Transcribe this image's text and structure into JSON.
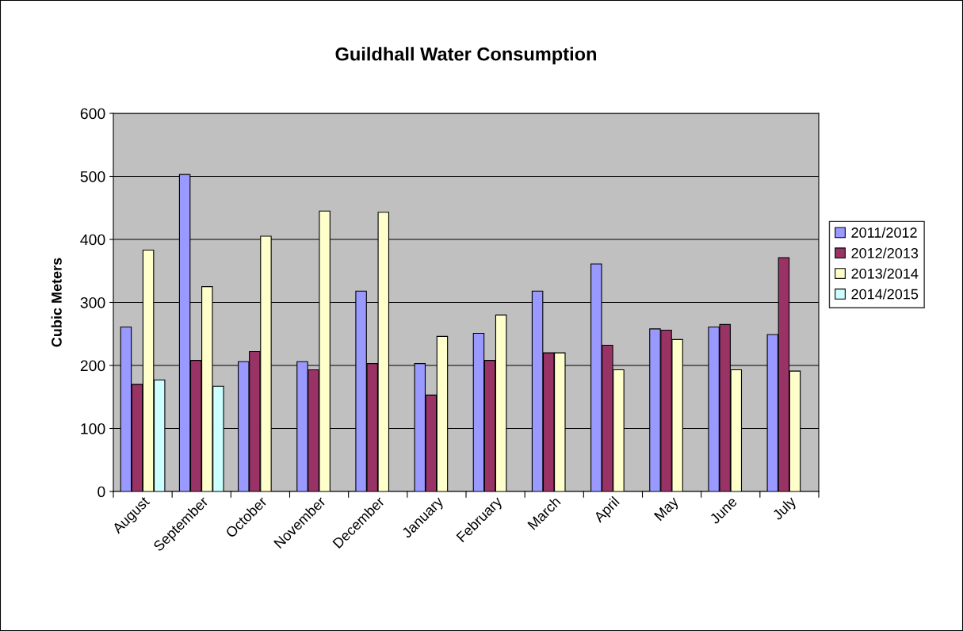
{
  "chart_data": {
    "type": "bar",
    "title": "Guildhall Water Consumption",
    "ylabel": "Cubic Meters",
    "categories": [
      "August",
      "September",
      "October",
      "November",
      "December",
      "January",
      "February",
      "March",
      "April",
      "May",
      "June",
      "July"
    ],
    "series": [
      {
        "name": "2011/2012",
        "color": "#9999ff",
        "values": [
          261,
          503,
          206,
          206,
          318,
          203,
          251,
          318,
          361,
          258,
          261,
          249
        ]
      },
      {
        "name": "2012/2013",
        "color": "#993366",
        "values": [
          170,
          208,
          222,
          193,
          203,
          153,
          208,
          220,
          232,
          256,
          265,
          371
        ]
      },
      {
        "name": "2013/2014",
        "color": "#ffffcc",
        "values": [
          383,
          325,
          405,
          445,
          443,
          246,
          280,
          220,
          193,
          241,
          193,
          191
        ]
      },
      {
        "name": "2014/2015",
        "color": "#ccffff",
        "values": [
          177,
          167,
          null,
          null,
          null,
          null,
          null,
          null,
          null,
          null,
          null,
          null
        ]
      }
    ],
    "ylim": [
      0,
      600
    ],
    "yticks": [
      0,
      100,
      200,
      300,
      400,
      500,
      600
    ],
    "grid": "y",
    "legend": "right"
  }
}
